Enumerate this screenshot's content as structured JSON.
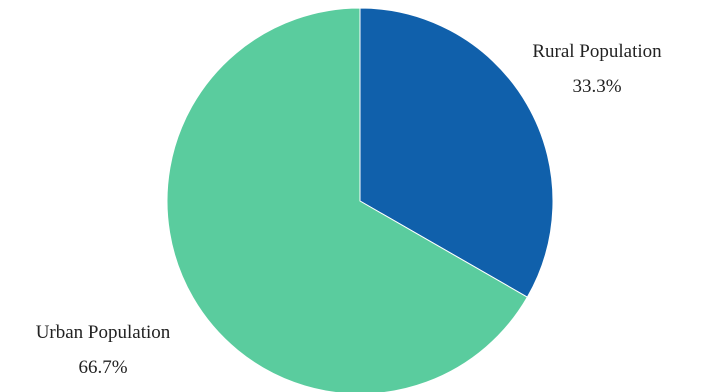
{
  "chart_data": {
    "type": "pie",
    "title": "",
    "start_angle_deg": 0,
    "direction": "clockwise",
    "slices": [
      {
        "label": "Rural Population",
        "value": 33.3,
        "value_label": "33.3%",
        "color": "#1060ab"
      },
      {
        "label": "Urban Population",
        "value": 66.7,
        "value_label": "66.7%",
        "color": "#5acc9e"
      }
    ],
    "legend": "none"
  }
}
